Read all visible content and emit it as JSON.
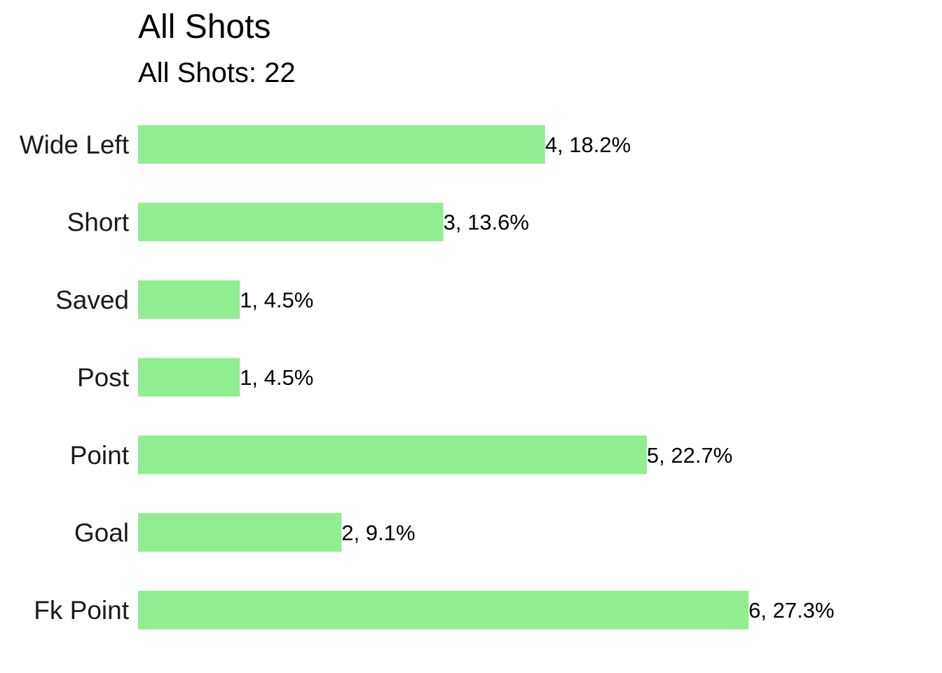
{
  "chart_data": {
    "type": "bar",
    "orientation": "horizontal",
    "title": "All Shots",
    "subtitle": "All Shots: 22",
    "categories": [
      "Wide Left",
      "Short",
      "Saved",
      "Post",
      "Point",
      "Goal",
      "Fk Point"
    ],
    "values": [
      4,
      3,
      1,
      1,
      5,
      2,
      6
    ],
    "data_labels": [
      "4, 18.2%",
      "3, 13.6%",
      "1, 4.5%",
      "1, 4.5%",
      "5, 22.7%",
      "2, 9.1%",
      "6, 27.3%"
    ],
    "xlim": [
      0,
      6
    ],
    "xlabel": "",
    "ylabel": "",
    "grid": false,
    "legend": "none",
    "bar_color": "#90EE90"
  }
}
